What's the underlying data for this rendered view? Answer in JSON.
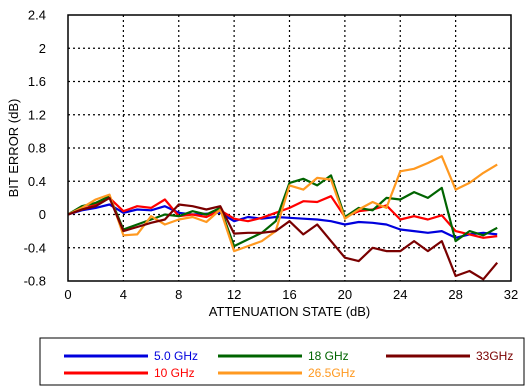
{
  "chart_data": {
    "type": "line",
    "title": "",
    "xlabel": "ATTENUATION STATE (dB)",
    "ylabel": "BIT ERROR (dB)",
    "xlim": [
      0,
      32
    ],
    "ylim": [
      -0.8,
      2.4
    ],
    "xticks": [
      0,
      4,
      8,
      12,
      16,
      20,
      24,
      28,
      32
    ],
    "yticks": [
      -0.8,
      -0.4,
      0,
      0.4,
      0.8,
      1.2,
      1.6,
      2,
      2.4
    ],
    "x": [
      0,
      1,
      2,
      3,
      4,
      5,
      6,
      7,
      8,
      9,
      10,
      11,
      12,
      13,
      14,
      15,
      16,
      17,
      18,
      19,
      20,
      21,
      22,
      23,
      24,
      25,
      26,
      27,
      28,
      29,
      30,
      31
    ],
    "grid": "dotted",
    "legend_position": "bottom",
    "series": [
      {
        "name": "5.0 GHz",
        "color": "#0000dd",
        "values": [
          0,
          0.05,
          0.08,
          0.12,
          0.02,
          0.06,
          0.05,
          0.1,
          0.02,
          0,
          0.01,
          0.02,
          -0.08,
          -0.03,
          -0.05,
          -0.03,
          -0.04,
          -0.05,
          -0.06,
          -0.08,
          -0.12,
          -0.09,
          -0.1,
          -0.12,
          -0.18,
          -0.2,
          -0.22,
          -0.2,
          -0.28,
          -0.24,
          -0.22,
          -0.24
        ]
      },
      {
        "name": "10 GHz",
        "color": "#ff0000",
        "values": [
          0,
          0.06,
          0.12,
          0.2,
          0.04,
          0.1,
          0.08,
          0.18,
          -0.02,
          0,
          -0.03,
          0.05,
          -0.05,
          -0.08,
          -0.04,
          0.02,
          0.08,
          0.16,
          0.15,
          0.22,
          -0.03,
          0.04,
          0.06,
          0.11,
          -0.06,
          -0.02,
          -0.06,
          -0.01,
          -0.2,
          -0.24,
          -0.28,
          -0.26
        ]
      },
      {
        "name": "18 GHz",
        "color": "#006400",
        "values": [
          0,
          0.1,
          0.14,
          0.22,
          -0.18,
          -0.12,
          -0.06,
          0,
          -0.02,
          0.04,
          0,
          0.08,
          -0.38,
          -0.3,
          -0.22,
          -0.08,
          0.38,
          0.43,
          0.35,
          0.47,
          -0.03,
          0.08,
          0.05,
          0.2,
          0.18,
          0.27,
          0.2,
          0.32,
          -0.32,
          -0.2,
          -0.25,
          -0.16
        ]
      },
      {
        "name": "26.5GHz",
        "color": "#ff9920",
        "values": [
          0,
          0.08,
          0.18,
          0.24,
          -0.25,
          -0.24,
          -0.02,
          -0.12,
          -0.06,
          -0.03,
          -0.09,
          0.06,
          -0.44,
          -0.38,
          -0.32,
          -0.2,
          0.35,
          0.3,
          0.44,
          0.42,
          -0.05,
          0.06,
          0.15,
          0.08,
          0.52,
          0.55,
          0.62,
          0.7,
          0.3,
          0.38,
          0.5,
          0.6
        ]
      },
      {
        "name": "33GHz",
        "color": "#7a0000",
        "values": [
          0,
          0.06,
          0.1,
          0.2,
          -0.2,
          -0.15,
          -0.1,
          -0.06,
          0.12,
          0.1,
          0.06,
          0.1,
          -0.23,
          -0.22,
          -0.22,
          -0.2,
          -0.08,
          -0.24,
          -0.12,
          -0.32,
          -0.52,
          -0.56,
          -0.4,
          -0.44,
          -0.44,
          -0.32,
          -0.44,
          -0.32,
          -0.74,
          -0.68,
          -0.78,
          -0.58
        ]
      }
    ]
  }
}
